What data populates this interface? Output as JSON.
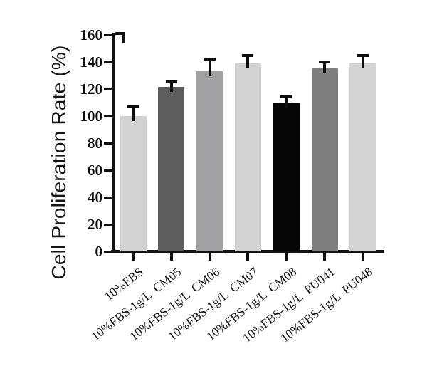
{
  "figure": {
    "background": "#ffffff"
  },
  "chart_data": {
    "type": "bar",
    "title": "",
    "xlabel": "",
    "ylabel": "Cell Proliferation Rate (%)",
    "ylim": [
      0,
      160
    ],
    "ytick_interval": 20,
    "yticks": [
      0,
      20,
      40,
      60,
      80,
      100,
      120,
      140,
      160
    ],
    "grid": false,
    "legend": "none",
    "error_bars": "upper whiskers with caps",
    "categories": [
      "10%FBS",
      "10%FBS-1g/L CM05",
      "10%FBS-1g/L CM06",
      "10%FBS-1g/L CM07",
      "10%FBS-1g/L CM08",
      "10%FBS-1g/L PU041",
      "10%FBS-1g/L PU048"
    ],
    "values": [
      100,
      121.5,
      133,
      139,
      110,
      135.5,
      139
    ],
    "errors_plus": [
      7,
      4,
      9,
      5.5,
      4,
      4.5,
      6
    ],
    "bar_colors": [
      "#d2d2d2",
      "#5e5e5e",
      "#a1a1a4",
      "#d2d2d2",
      "#060606",
      "#7f7f7f",
      "#d4d4d4"
    ],
    "colors": {
      "axis": "#131313",
      "error_bar": "#0e0e0e",
      "tick_label": "#0d0d0d",
      "axis_title": "#161616"
    }
  }
}
